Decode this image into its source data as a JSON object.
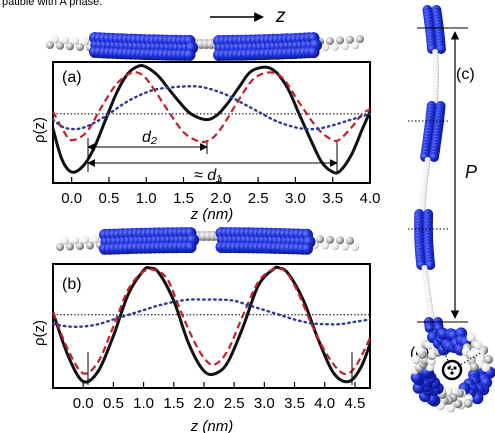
{
  "caption_fragment": "patible with A phase.",
  "top_axis_label": "z",
  "panel_c": {
    "label": "(c)",
    "pitch_label": "P"
  },
  "panel_d": {
    "label": "(d)",
    "angle_label": "α"
  },
  "chart_data": [
    {
      "type": "line",
      "panel_label": "(a)",
      "ylabel": "ρ(z)",
      "xlabel": "z (nm)",
      "xlim": [
        -0.25,
        4.0
      ],
      "xticks": [
        0.0,
        0.5,
        1.0,
        1.5,
        2.0,
        2.5,
        3.0,
        3.5,
        4.0
      ],
      "xtick_labels": [
        "0.0",
        "0.5",
        "1.0",
        "1.5",
        "2.0",
        "2.5",
        "3.0",
        "3.5",
        "4.0"
      ],
      "ylim": [
        0,
        1
      ],
      "reference_level": 0.58,
      "series": [
        {
          "style": "solid",
          "color": "#111111",
          "x": [
            -0.25,
            -0.13,
            0.0,
            0.15,
            0.3,
            0.45,
            0.6,
            0.75,
            0.9,
            1.0,
            1.15,
            1.3,
            1.45,
            1.6,
            1.8,
            1.95,
            2.1,
            2.25,
            2.4,
            2.6,
            2.75,
            2.9,
            3.05,
            3.2,
            3.35,
            3.5,
            3.6,
            3.75,
            3.9,
            4.0
          ],
          "y": [
            0.45,
            0.18,
            0.07,
            0.12,
            0.28,
            0.52,
            0.76,
            0.93,
            1.0,
            0.99,
            0.92,
            0.8,
            0.68,
            0.58,
            0.53,
            0.57,
            0.68,
            0.82,
            0.95,
            0.99,
            0.94,
            0.8,
            0.58,
            0.36,
            0.16,
            0.07,
            0.08,
            0.22,
            0.45,
            0.6
          ]
        },
        {
          "style": "dashed",
          "color": "#c0222b",
          "x": [
            -0.25,
            -0.1,
            0.0,
            0.2,
            0.4,
            0.6,
            0.8,
            0.95,
            1.1,
            1.3,
            1.5,
            1.7,
            1.85,
            2.0,
            2.2,
            2.4,
            2.55,
            2.7,
            2.85,
            3.05,
            3.3,
            3.5,
            3.6,
            3.75,
            3.9,
            4.0
          ],
          "y": [
            0.6,
            0.42,
            0.35,
            0.42,
            0.64,
            0.84,
            0.94,
            0.92,
            0.8,
            0.6,
            0.42,
            0.34,
            0.35,
            0.45,
            0.66,
            0.86,
            0.93,
            0.94,
            0.88,
            0.68,
            0.45,
            0.35,
            0.36,
            0.46,
            0.58,
            0.62
          ]
        },
        {
          "style": "dotted",
          "color": "#2c3d8f",
          "x": [
            -0.25,
            -0.1,
            0.1,
            0.3,
            0.5,
            0.7,
            0.9,
            1.1,
            1.3,
            1.5,
            1.7,
            1.9,
            2.1,
            2.3,
            2.5,
            2.7,
            2.9,
            3.1,
            3.3,
            3.5,
            3.7,
            3.9,
            4.0
          ],
          "y": [
            0.53,
            0.46,
            0.45,
            0.5,
            0.58,
            0.67,
            0.74,
            0.79,
            0.81,
            0.82,
            0.82,
            0.79,
            0.74,
            0.67,
            0.6,
            0.53,
            0.48,
            0.45,
            0.45,
            0.48,
            0.52,
            0.56,
            0.58
          ]
        }
      ],
      "annotations": [
        {
          "text": "d₂",
          "from": 0.0,
          "to": 1.75
        },
        {
          "text": "≈ d₁",
          "from": 0.0,
          "to": 3.55
        }
      ]
    },
    {
      "type": "line",
      "panel_label": "(b)",
      "ylabel": "ρ(z)",
      "xlabel": "z (nm)",
      "xlim": [
        -0.5,
        4.75
      ],
      "xticks": [
        0.0,
        0.5,
        1.0,
        1.5,
        2.0,
        2.5,
        3.0,
        3.5,
        4.0,
        4.5
      ],
      "xtick_labels": [
        "0.0",
        "0.5",
        "1.0",
        "1.5",
        "2.0",
        "2.5",
        "3.0",
        "3.5",
        "4.0",
        "4.5"
      ],
      "ylim": [
        0,
        1
      ],
      "reference_level": 0.6,
      "series": [
        {
          "style": "solid",
          "color": "#111111",
          "x": [
            -0.5,
            -0.25,
            0.0,
            0.25,
            0.5,
            0.75,
            1.0,
            1.1,
            1.25,
            1.5,
            1.75,
            2.0,
            2.2,
            2.4,
            2.65,
            2.9,
            3.15,
            3.25,
            3.4,
            3.65,
            3.9,
            4.15,
            4.4,
            4.6,
            4.75
          ],
          "y": [
            0.62,
            0.25,
            0.03,
            0.12,
            0.42,
            0.78,
            0.98,
            1.0,
            0.96,
            0.72,
            0.35,
            0.12,
            0.1,
            0.2,
            0.5,
            0.85,
            0.99,
            1.0,
            0.95,
            0.72,
            0.38,
            0.1,
            0.03,
            0.15,
            0.35
          ]
        },
        {
          "style": "dashed",
          "color": "#c0222b",
          "x": [
            -0.5,
            -0.25,
            0.0,
            0.25,
            0.5,
            0.75,
            1.0,
            1.2,
            1.4,
            1.6,
            1.85,
            2.05,
            2.2,
            2.4,
            2.65,
            2.9,
            3.15,
            3.35,
            3.55,
            3.8,
            4.05,
            4.3,
            4.5,
            4.75
          ],
          "y": [
            0.62,
            0.3,
            0.1,
            0.2,
            0.5,
            0.82,
            0.97,
            0.98,
            0.9,
            0.65,
            0.36,
            0.2,
            0.18,
            0.3,
            0.6,
            0.88,
            0.99,
            0.97,
            0.8,
            0.5,
            0.25,
            0.1,
            0.15,
            0.4
          ]
        },
        {
          "style": "dotted",
          "color": "#2c3d8f",
          "x": [
            -0.5,
            -0.25,
            0.0,
            0.25,
            0.5,
            0.75,
            1.0,
            1.25,
            1.5,
            1.75,
            2.0,
            2.25,
            2.5,
            2.75,
            3.0,
            3.25,
            3.5,
            3.75,
            4.0,
            4.25,
            4.5,
            4.75
          ],
          "y": [
            0.52,
            0.5,
            0.5,
            0.52,
            0.56,
            0.6,
            0.64,
            0.68,
            0.71,
            0.73,
            0.73,
            0.73,
            0.72,
            0.68,
            0.64,
            0.6,
            0.56,
            0.53,
            0.52,
            0.52,
            0.54,
            0.56
          ]
        }
      ],
      "annotations": []
    }
  ]
}
